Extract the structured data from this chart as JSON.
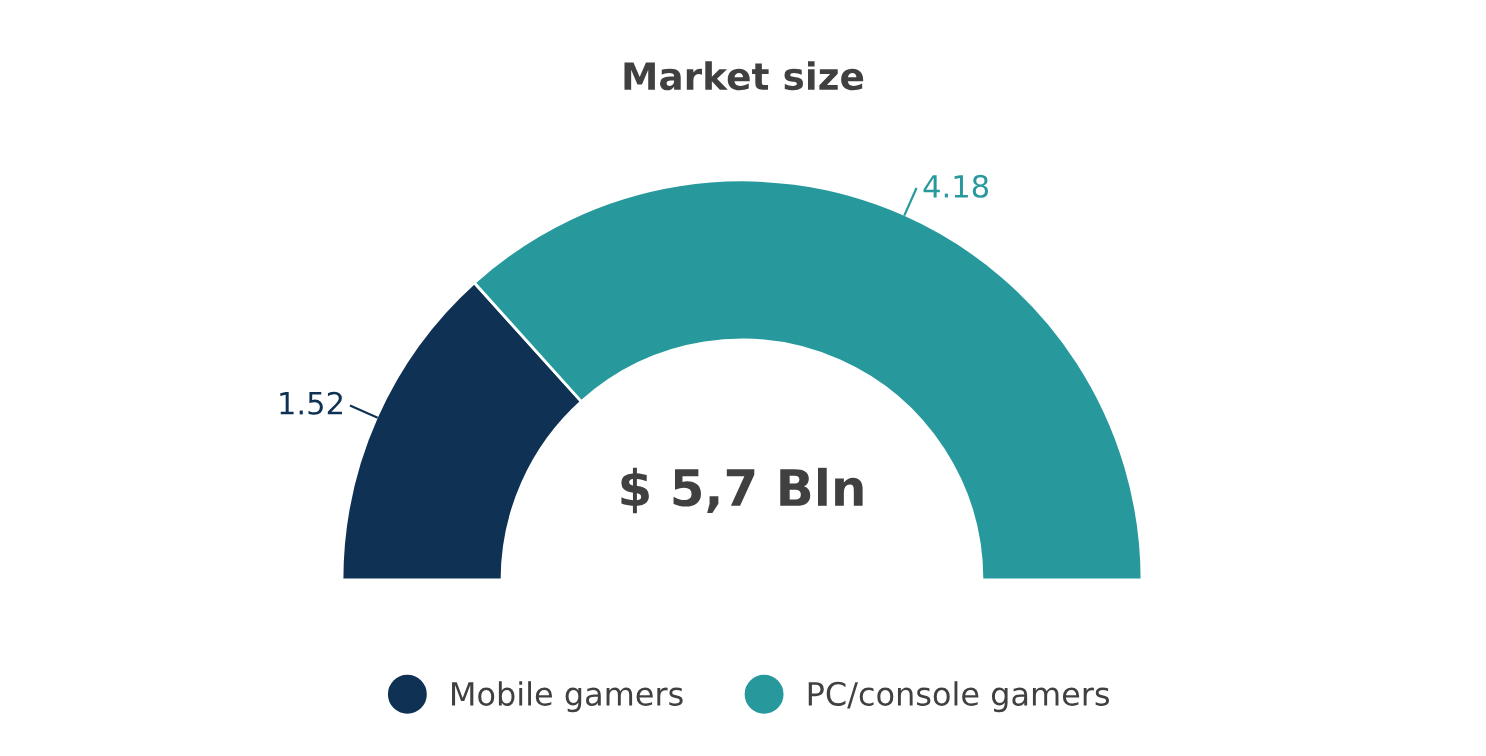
{
  "chart_data": {
    "type": "donut",
    "title": "Market size",
    "categories": [
      "Mobile gamers",
      "PC/console gamers"
    ],
    "values": [
      1.52,
      4.18
    ],
    "colors": [
      "#0f3254",
      "#27999c"
    ],
    "annotations": [
      "$ 5,7 Bln"
    ],
    "data_labels": true,
    "legend": "bottom"
  }
}
